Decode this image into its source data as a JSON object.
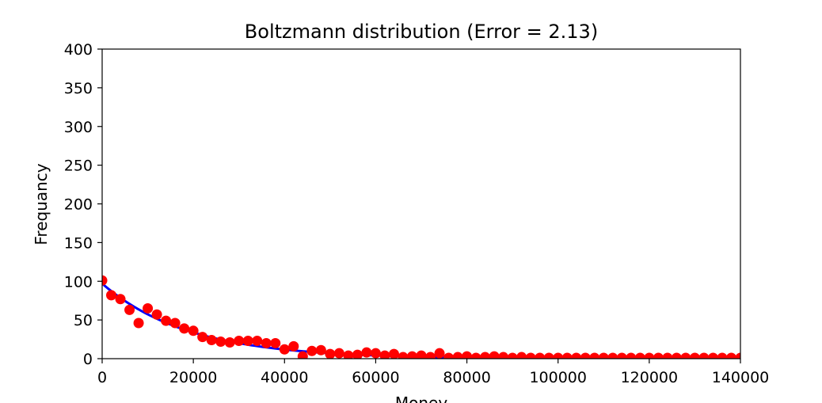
{
  "chart_data": {
    "type": "scatter",
    "title": "Boltzmann distribution (Error = 2.13)",
    "xlabel": "Money",
    "ylabel": "Frequancy",
    "xlim": [
      0,
      140000
    ],
    "ylim": [
      0,
      400
    ],
    "xticks": [
      0,
      20000,
      40000,
      60000,
      80000,
      100000,
      120000,
      140000
    ],
    "yticks": [
      0,
      50,
      100,
      150,
      200,
      250,
      300,
      350,
      400
    ],
    "grid": false,
    "series": [
      {
        "kind": "scatter",
        "color": "#ff0000",
        "points": [
          [
            0,
            101
          ],
          [
            2000,
            82
          ],
          [
            4000,
            77
          ],
          [
            6000,
            63
          ],
          [
            8000,
            46
          ],
          [
            10000,
            65
          ],
          [
            12000,
            57
          ],
          [
            14000,
            49
          ],
          [
            16000,
            46
          ],
          [
            18000,
            39
          ],
          [
            20000,
            36
          ],
          [
            22000,
            28
          ],
          [
            24000,
            24
          ],
          [
            26000,
            22
          ],
          [
            28000,
            21
          ],
          [
            30000,
            23
          ],
          [
            32000,
            23
          ],
          [
            34000,
            23
          ],
          [
            36000,
            20
          ],
          [
            38000,
            20
          ],
          [
            40000,
            12
          ],
          [
            42000,
            16
          ],
          [
            44000,
            3
          ],
          [
            46000,
            10
          ],
          [
            48000,
            11
          ],
          [
            50000,
            6
          ],
          [
            52000,
            7
          ],
          [
            54000,
            4
          ],
          [
            56000,
            5
          ],
          [
            58000,
            8
          ],
          [
            60000,
            7
          ],
          [
            62000,
            4
          ],
          [
            64000,
            6
          ],
          [
            66000,
            2
          ],
          [
            68000,
            3
          ],
          [
            70000,
            4
          ],
          [
            72000,
            2
          ],
          [
            74000,
            7
          ],
          [
            76000,
            1
          ],
          [
            78000,
            2
          ],
          [
            80000,
            3
          ],
          [
            82000,
            1
          ],
          [
            84000,
            2
          ],
          [
            86000,
            3
          ],
          [
            88000,
            2
          ],
          [
            90000,
            1
          ],
          [
            92000,
            2
          ],
          [
            94000,
            1
          ],
          [
            96000,
            1
          ],
          [
            98000,
            1
          ],
          [
            100000,
            1
          ],
          [
            102000,
            1
          ],
          [
            104000,
            1
          ],
          [
            106000,
            1
          ],
          [
            108000,
            1
          ],
          [
            110000,
            1
          ],
          [
            112000,
            1
          ],
          [
            114000,
            1
          ],
          [
            116000,
            1
          ],
          [
            118000,
            1
          ],
          [
            120000,
            1
          ],
          [
            122000,
            1
          ],
          [
            124000,
            1
          ],
          [
            126000,
            1
          ],
          [
            128000,
            1
          ],
          [
            130000,
            1
          ],
          [
            132000,
            1
          ],
          [
            134000,
            1
          ],
          [
            136000,
            1
          ],
          [
            138000,
            1
          ],
          [
            140000,
            1
          ]
        ]
      },
      {
        "kind": "line",
        "color": "#0000ff",
        "function": "exponential",
        "amplitude": 97,
        "decay_scale": 19000,
        "x_range": [
          0,
          140000
        ]
      }
    ]
  }
}
